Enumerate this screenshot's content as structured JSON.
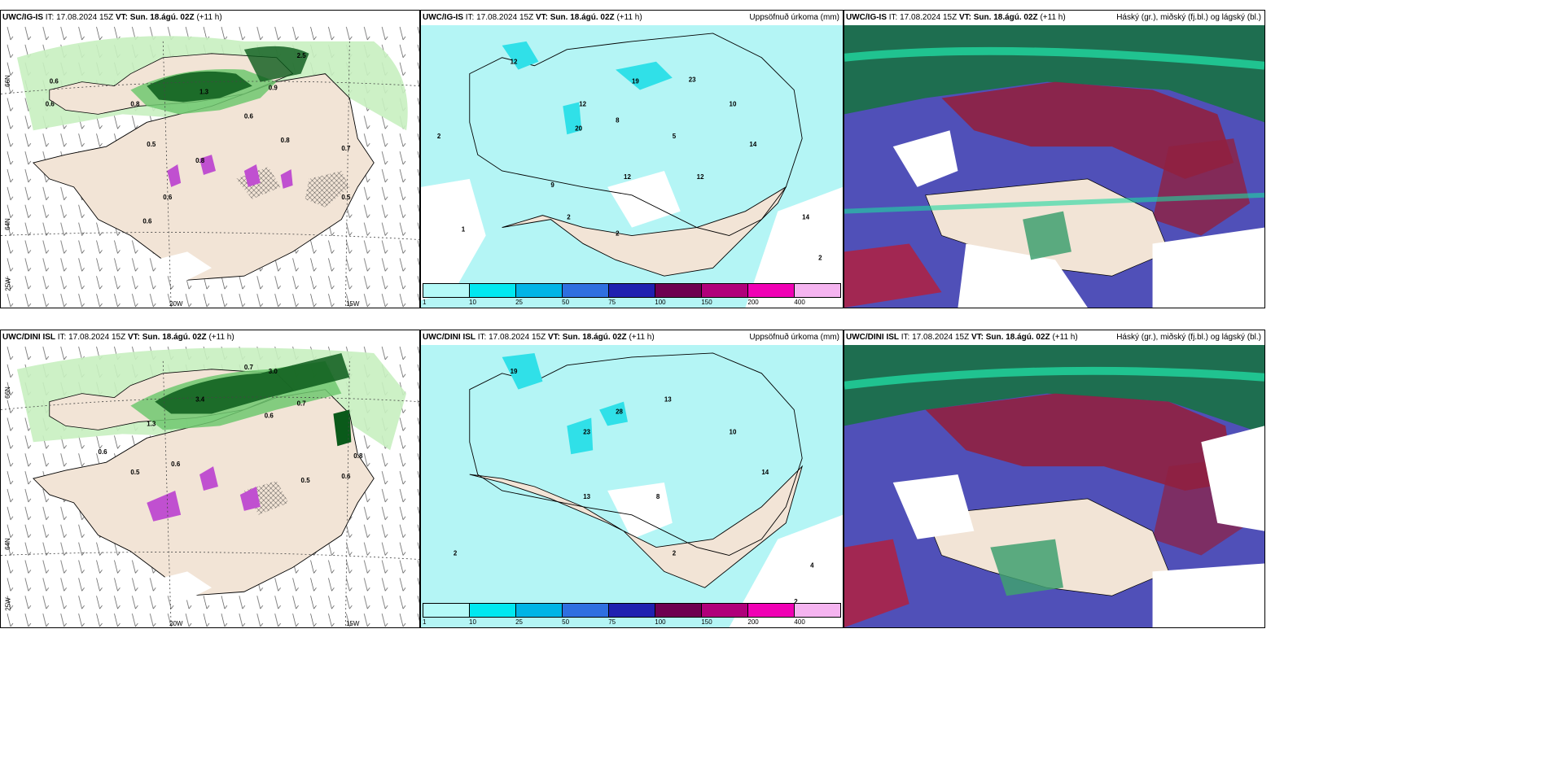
{
  "rows": [
    {
      "model": "UWC/IG-IS",
      "it_label": "IT:",
      "it": "17.08.2024 15Z",
      "vt_label": "VT:",
      "vt": "Sun. 18.ágú. 02Z",
      "lead": "(+11 h)"
    },
    {
      "model": "UWC/DINI ISL",
      "it_label": "IT:",
      "it": "17.08.2024 15Z",
      "vt_label": "VT:",
      "vt": "Sun. 18.ágú. 02Z",
      "lead": "(+11 h)"
    }
  ],
  "precip_title": "Uppsöfnuð úrkoma (mm)",
  "cloud_title": "Háský (gr.), miðský (fj.bl.) og lágský (bl.)",
  "axis_labels": {
    "lat_66": "66N",
    "lat_64": "64N",
    "lon_25": "25W",
    "lon_20": "20W",
    "lon_15": "15W"
  },
  "legend": {
    "ticks": [
      "1",
      "10",
      "25",
      "50",
      "75",
      "100",
      "150",
      "200",
      "400"
    ],
    "colors": [
      "#b4faf8",
      "#00e8f0",
      "#00b4e6",
      "#2f6fe0",
      "#2020b0",
      "#6e0050",
      "#b0007a",
      "#f000b4",
      "#f5b4f0"
    ]
  },
  "colors": {
    "land": "#f2e4d6",
    "precip_light": "#b4f5f5",
    "precip_med": "#30e0e8",
    "green_light": "#c8f0c0",
    "green_med": "#70c870",
    "green_dark": "#0a5a1a",
    "cloud_high": "#1e6e50",
    "cloud_mid": "#5050b8",
    "cloud_low": "#b02040"
  }
}
